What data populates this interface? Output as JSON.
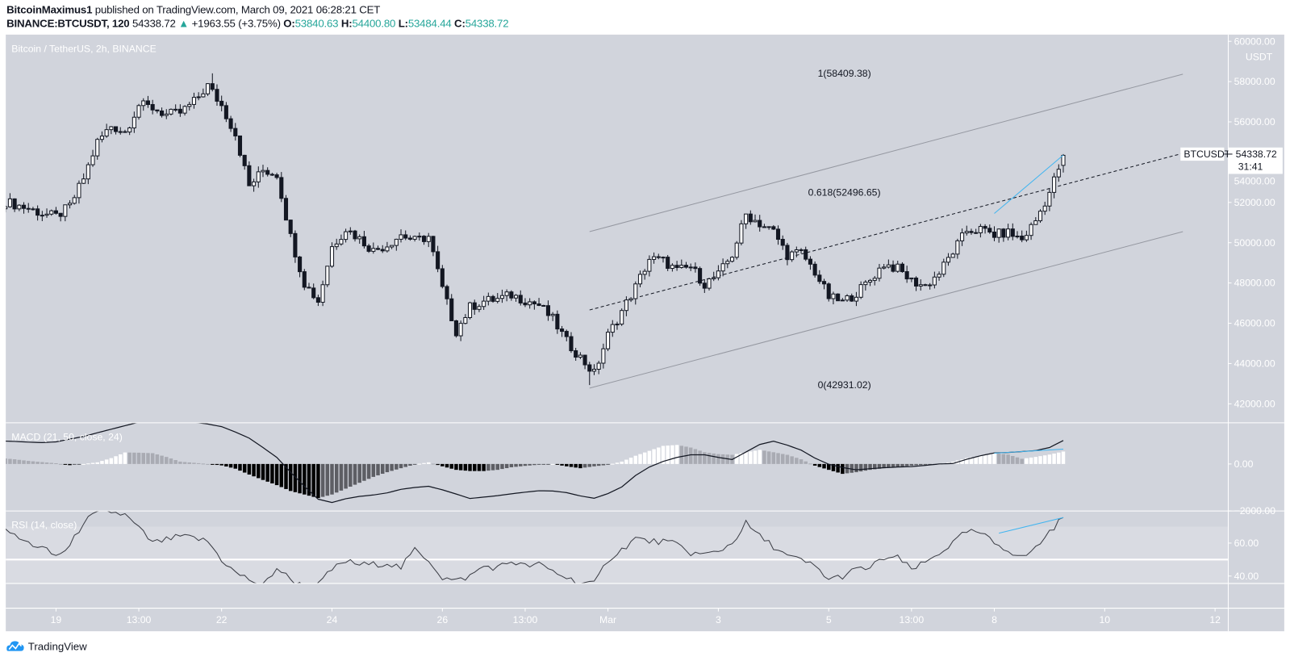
{
  "header": {
    "publisher": "BitcoinMaximus1",
    "published_text": "published on TradingView.com, March 09, 2021 06:28:21 CET",
    "symbol": "BINANCE:BTCUSDT, 120",
    "last": "54338.72",
    "change": "+1963.55 (+3.75%)",
    "o_label": "O:",
    "o": "53840.63",
    "h_label": "H:",
    "h": "54400.80",
    "l_label": "L:",
    "l": "53484.44",
    "c_label": "C:",
    "c": "54338.72"
  },
  "chart": {
    "legend": "Bitcoin / TetherUS, 2h, BINANCE",
    "currency": "USDT",
    "last_label": "BTCUSDT",
    "last_price": "54338.72",
    "countdown": "31:41"
  },
  "colors": {
    "background": "#d1d4dc",
    "up_candle": "#ffffff",
    "down_candle": "#131722",
    "accent_green": "#26a69a",
    "trendline_blue": "#42b5f0",
    "channel_gray": "#9598a1",
    "brand_blue": "#2196f3"
  },
  "footer": {
    "brand": "TradingView"
  },
  "chart_data": {
    "type": "candlestick",
    "title": "Bitcoin / TetherUS, 2h, BINANCE",
    "timeframe": "2h",
    "sampling": "6h",
    "x_range": [
      "2021-02-18T00:00",
      "2021-03-09T06:00"
    ],
    "close_6h": [
      52100,
      51900,
      51700,
      51450,
      51300,
      51800,
      53200,
      55000,
      55800,
      55500,
      56850,
      56700,
      56350,
      56450,
      57000,
      57800,
      56800,
      55400,
      52800,
      53600,
      53400,
      50300,
      48000,
      47100,
      49800,
      50700,
      50200,
      49600,
      49900,
      50400,
      50100,
      50300,
      47700,
      45600,
      46800,
      47100,
      47200,
      47400,
      47150,
      46900,
      46200,
      45100,
      44300,
      43500,
      45400,
      46600,
      47800,
      49200,
      49100,
      48600,
      48800,
      47950,
      48400,
      49400,
      51400,
      50950,
      50550,
      49400,
      49500,
      48550,
      47300,
      47050,
      47500,
      48150,
      48950,
      48700,
      48100,
      47850,
      48500,
      49550,
      50600,
      50650,
      50400,
      50500,
      50150,
      51100,
      52500,
      54300
    ],
    "last_candle": {
      "open": 53840.63,
      "high": 54400.8,
      "low": 53484.44,
      "close": 54338.72
    },
    "ylim": [
      41060,
      60330
    ],
    "y_ticks": [
      60000,
      58000,
      56000,
      54000,
      52000,
      50000,
      48000,
      46000,
      44000,
      42000
    ],
    "y_tick_labels": [
      "60000.00",
      "58000.00",
      "56000.00",
      "54000.00",
      "52000.00",
      "50000.00",
      "48000.00",
      "46000.00",
      "44000.00",
      "42000.00"
    ],
    "x_ticks": [
      {
        "label": "19",
        "t": "2021-02-19T00:00"
      },
      {
        "label": "13:00",
        "t": "2021-02-20T12:00"
      },
      {
        "label": "22",
        "t": "2021-02-22T00:00"
      },
      {
        "label": "24",
        "t": "2021-02-24T00:00"
      },
      {
        "label": "26",
        "t": "2021-02-26T00:00"
      },
      {
        "label": "13:00",
        "t": "2021-02-27T12:00"
      },
      {
        "label": "Mar",
        "t": "2021-03-01T00:00"
      },
      {
        "label": "3",
        "t": "2021-03-03T00:00"
      },
      {
        "label": "5",
        "t": "2021-03-05T00:00"
      },
      {
        "label": "13:00",
        "t": "2021-03-06T12:00"
      },
      {
        "label": "8",
        "t": "2021-03-08T00:00"
      },
      {
        "label": "10",
        "t": "2021-03-10T00:00"
      },
      {
        "label": "12",
        "t": "2021-03-12T00:00"
      }
    ],
    "channel": {
      "upper": [
        [
          "2021-02-28T16:00",
          50550
        ],
        [
          "2021-03-11T10:00",
          58370
        ]
      ],
      "middle": [
        [
          "2021-02-28T16:00",
          46660
        ],
        [
          "2021-03-11T10:00",
          54440
        ]
      ],
      "lower": [
        [
          "2021-02-28T16:00",
          42780
        ],
        [
          "2021-03-11T10:00",
          50550
        ]
      ]
    },
    "fib_levels": [
      {
        "label": "1(58409.38)",
        "level": 1,
        "price": 58409.38
      },
      {
        "label": "0.618(52496.65)",
        "level": 0.618,
        "price": 52496.65
      },
      {
        "label": "0(42931.02)",
        "level": 0,
        "price": 42931.02
      }
    ],
    "trendline": [
      [
        "2021-03-08T00:00",
        51450
      ],
      [
        "2021-03-09T06:00",
        54350
      ]
    ],
    "macd": {
      "label": "MACD (21, 50, close, 24)",
      "macd_6h": [
        980,
        960,
        930,
        910,
        940,
        1060,
        1170,
        1330,
        1480,
        1630,
        1780,
        1800,
        1800,
        1800,
        1780,
        1700,
        1590,
        1360,
        1100,
        700,
        280,
        -350,
        -950,
        -1500,
        -1640,
        -1480,
        -1380,
        -1320,
        -1230,
        -1080,
        -1000,
        -950,
        -1100,
        -1280,
        -1470,
        -1410,
        -1350,
        -1270,
        -1200,
        -1140,
        -1150,
        -1220,
        -1360,
        -1460,
        -1260,
        -980,
        -490,
        -130,
        110,
        280,
        390,
        390,
        280,
        190,
        510,
        830,
        970,
        800,
        590,
        250,
        -10,
        -150,
        -250,
        -200,
        -160,
        -130,
        -110,
        -60,
        0,
        20,
        200,
        350,
        470,
        490,
        530,
        570,
        700,
        1000
      ],
      "histogram_6h": [
        250,
        200,
        130,
        80,
        30,
        -50,
        0,
        70,
        250,
        490,
        480,
        460,
        300,
        100,
        50,
        0,
        -60,
        -200,
        -450,
        -680,
        -900,
        -1150,
        -1300,
        -1450,
        -1300,
        -1050,
        -800,
        -550,
        -350,
        -180,
        -20,
        70,
        -100,
        -250,
        -300,
        -300,
        -250,
        -140,
        -80,
        -30,
        0,
        -100,
        -180,
        -100,
        -35,
        100,
        350,
        560,
        770,
        810,
        700,
        500,
        420,
        390,
        500,
        600,
        500,
        390,
        200,
        -70,
        -250,
        -420,
        -350,
        -250,
        -180,
        -120,
        -70,
        -30,
        0,
        100,
        250,
        350,
        460,
        400,
        220,
        300,
        400,
        530
      ],
      "ylim": [
        -2000,
        1750
      ],
      "y_ticks": [
        0,
        -2000
      ],
      "y_tick_labels": [
        "0.00",
        "−2000.00"
      ],
      "trendline": [
        [
          "2021-03-08T00:00",
          460
        ],
        [
          "2021-03-09T06:00",
          630
        ]
      ]
    },
    "rsi": {
      "label": "RSI (14, close)",
      "rsi_6h": [
        73,
        64,
        60,
        57,
        52,
        58,
        73,
        78,
        79,
        77,
        69,
        60,
        62,
        64,
        63,
        61,
        50,
        42,
        38,
        34,
        45,
        38,
        33.5,
        34.5,
        44,
        49,
        47,
        47,
        48,
        45,
        56,
        50,
        39,
        37,
        40,
        46,
        45,
        49,
        46,
        47,
        43,
        39,
        36,
        35,
        50,
        56,
        63,
        61,
        61,
        59,
        54,
        53,
        55,
        60,
        72,
        64,
        58,
        52,
        49.5,
        46,
        38,
        40,
        44,
        45,
        51,
        51,
        44,
        48,
        54,
        60,
        67,
        66,
        60,
        56,
        51,
        57,
        67,
        75.5
      ],
      "ylim": [
        35.5,
        79.5
      ],
      "bands": [
        70,
        50,
        30
      ],
      "y_ticks": [
        60,
        40
      ],
      "y_tick_labels": [
        "60.00",
        "40.00"
      ],
      "trendline": [
        [
          "2021-03-08T02:00",
          66
        ],
        [
          "2021-03-09T06:00",
          75.5
        ]
      ]
    }
  }
}
